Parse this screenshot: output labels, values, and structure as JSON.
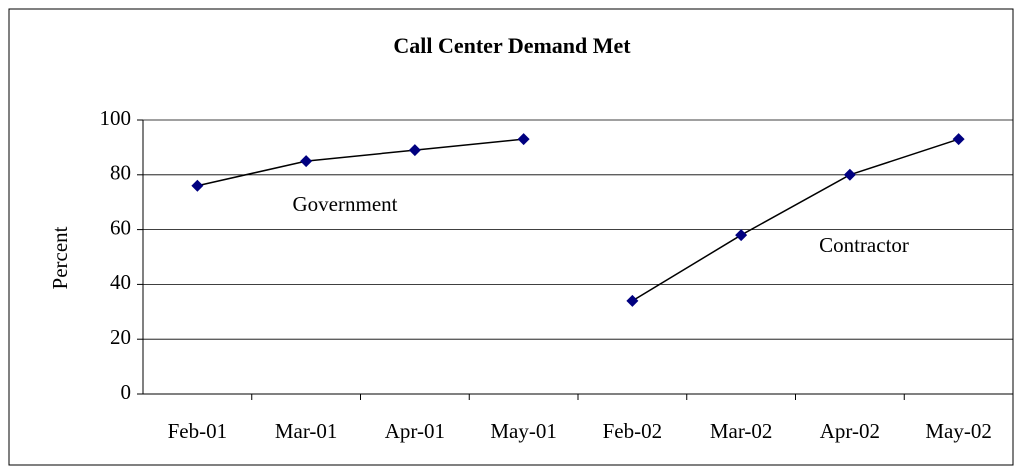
{
  "chart_data": {
    "type": "line",
    "title": "Call Center Demand Met",
    "y_label": "Percent",
    "categories": [
      "Feb-01",
      "Mar-01",
      "Apr-01",
      "May-01",
      "Feb-02",
      "Mar-02",
      "Apr-02",
      "May-02"
    ],
    "series": [
      {
        "name": "Government",
        "color": "#000080",
        "values": [
          76,
          85,
          89,
          93,
          null,
          null,
          null,
          null
        ]
      },
      {
        "name": "Contractor",
        "color": "#000080",
        "values": [
          null,
          null,
          null,
          null,
          34,
          58,
          80,
          93
        ]
      }
    ],
    "ylim": [
      0,
      100
    ],
    "yticks": [
      0,
      20,
      40,
      60,
      80,
      100
    ],
    "grid": true
  }
}
